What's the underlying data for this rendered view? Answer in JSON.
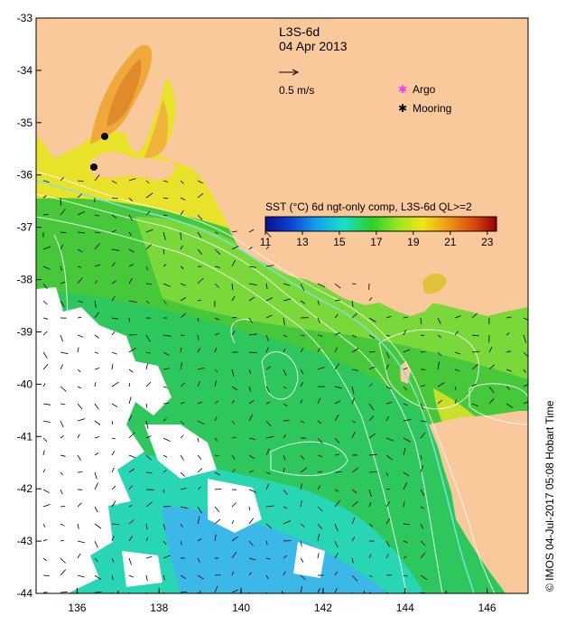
{
  "product": "L3S-6d",
  "date": "04 Apr 2013",
  "scale_arrow_label": "0.5 m/s",
  "legend": {
    "argo": "Argo",
    "mooring": "Mooring",
    "argo_color": "#ff33ff",
    "mooring_color": "#000000"
  },
  "colorbar": {
    "title": "SST (°C) 6d ngt-only comp, L3S-6d QL>=2",
    "min": 11,
    "max": 23.5,
    "tick_labels": [
      "11",
      "13",
      "15",
      "17",
      "19",
      "21",
      "23"
    ],
    "tick_values": [
      11,
      13,
      15,
      17,
      19,
      21,
      23
    ]
  },
  "credit": "© IMOS 04-Jul-2017 05:08 Hobart Time",
  "axes": {
    "lon_range": [
      135,
      147
    ],
    "lat_range": [
      -44,
      -33
    ],
    "x_tick_labels": [
      "136",
      "138",
      "140",
      "142",
      "144",
      "146"
    ],
    "x_tick_values": [
      136,
      138,
      140,
      142,
      144,
      146
    ],
    "y_tick_labels": [
      "-33",
      "-34",
      "-35",
      "-36",
      "-37",
      "-38",
      "-39",
      "-40",
      "-41",
      "-42",
      "-43",
      "-44"
    ],
    "y_tick_values": [
      -33,
      -34,
      -35,
      -36,
      -37,
      -38,
      -39,
      -40,
      -41,
      -42,
      -43,
      -44
    ]
  },
  "moorings": [
    {
      "lon": 136.7,
      "lat": -35.25
    },
    {
      "lon": 136.45,
      "lat": -35.85
    }
  ],
  "colors": {
    "land": "#f9c89b",
    "no_data": "#ffffff",
    "shelf_contour": "#7fe0e0"
  }
}
